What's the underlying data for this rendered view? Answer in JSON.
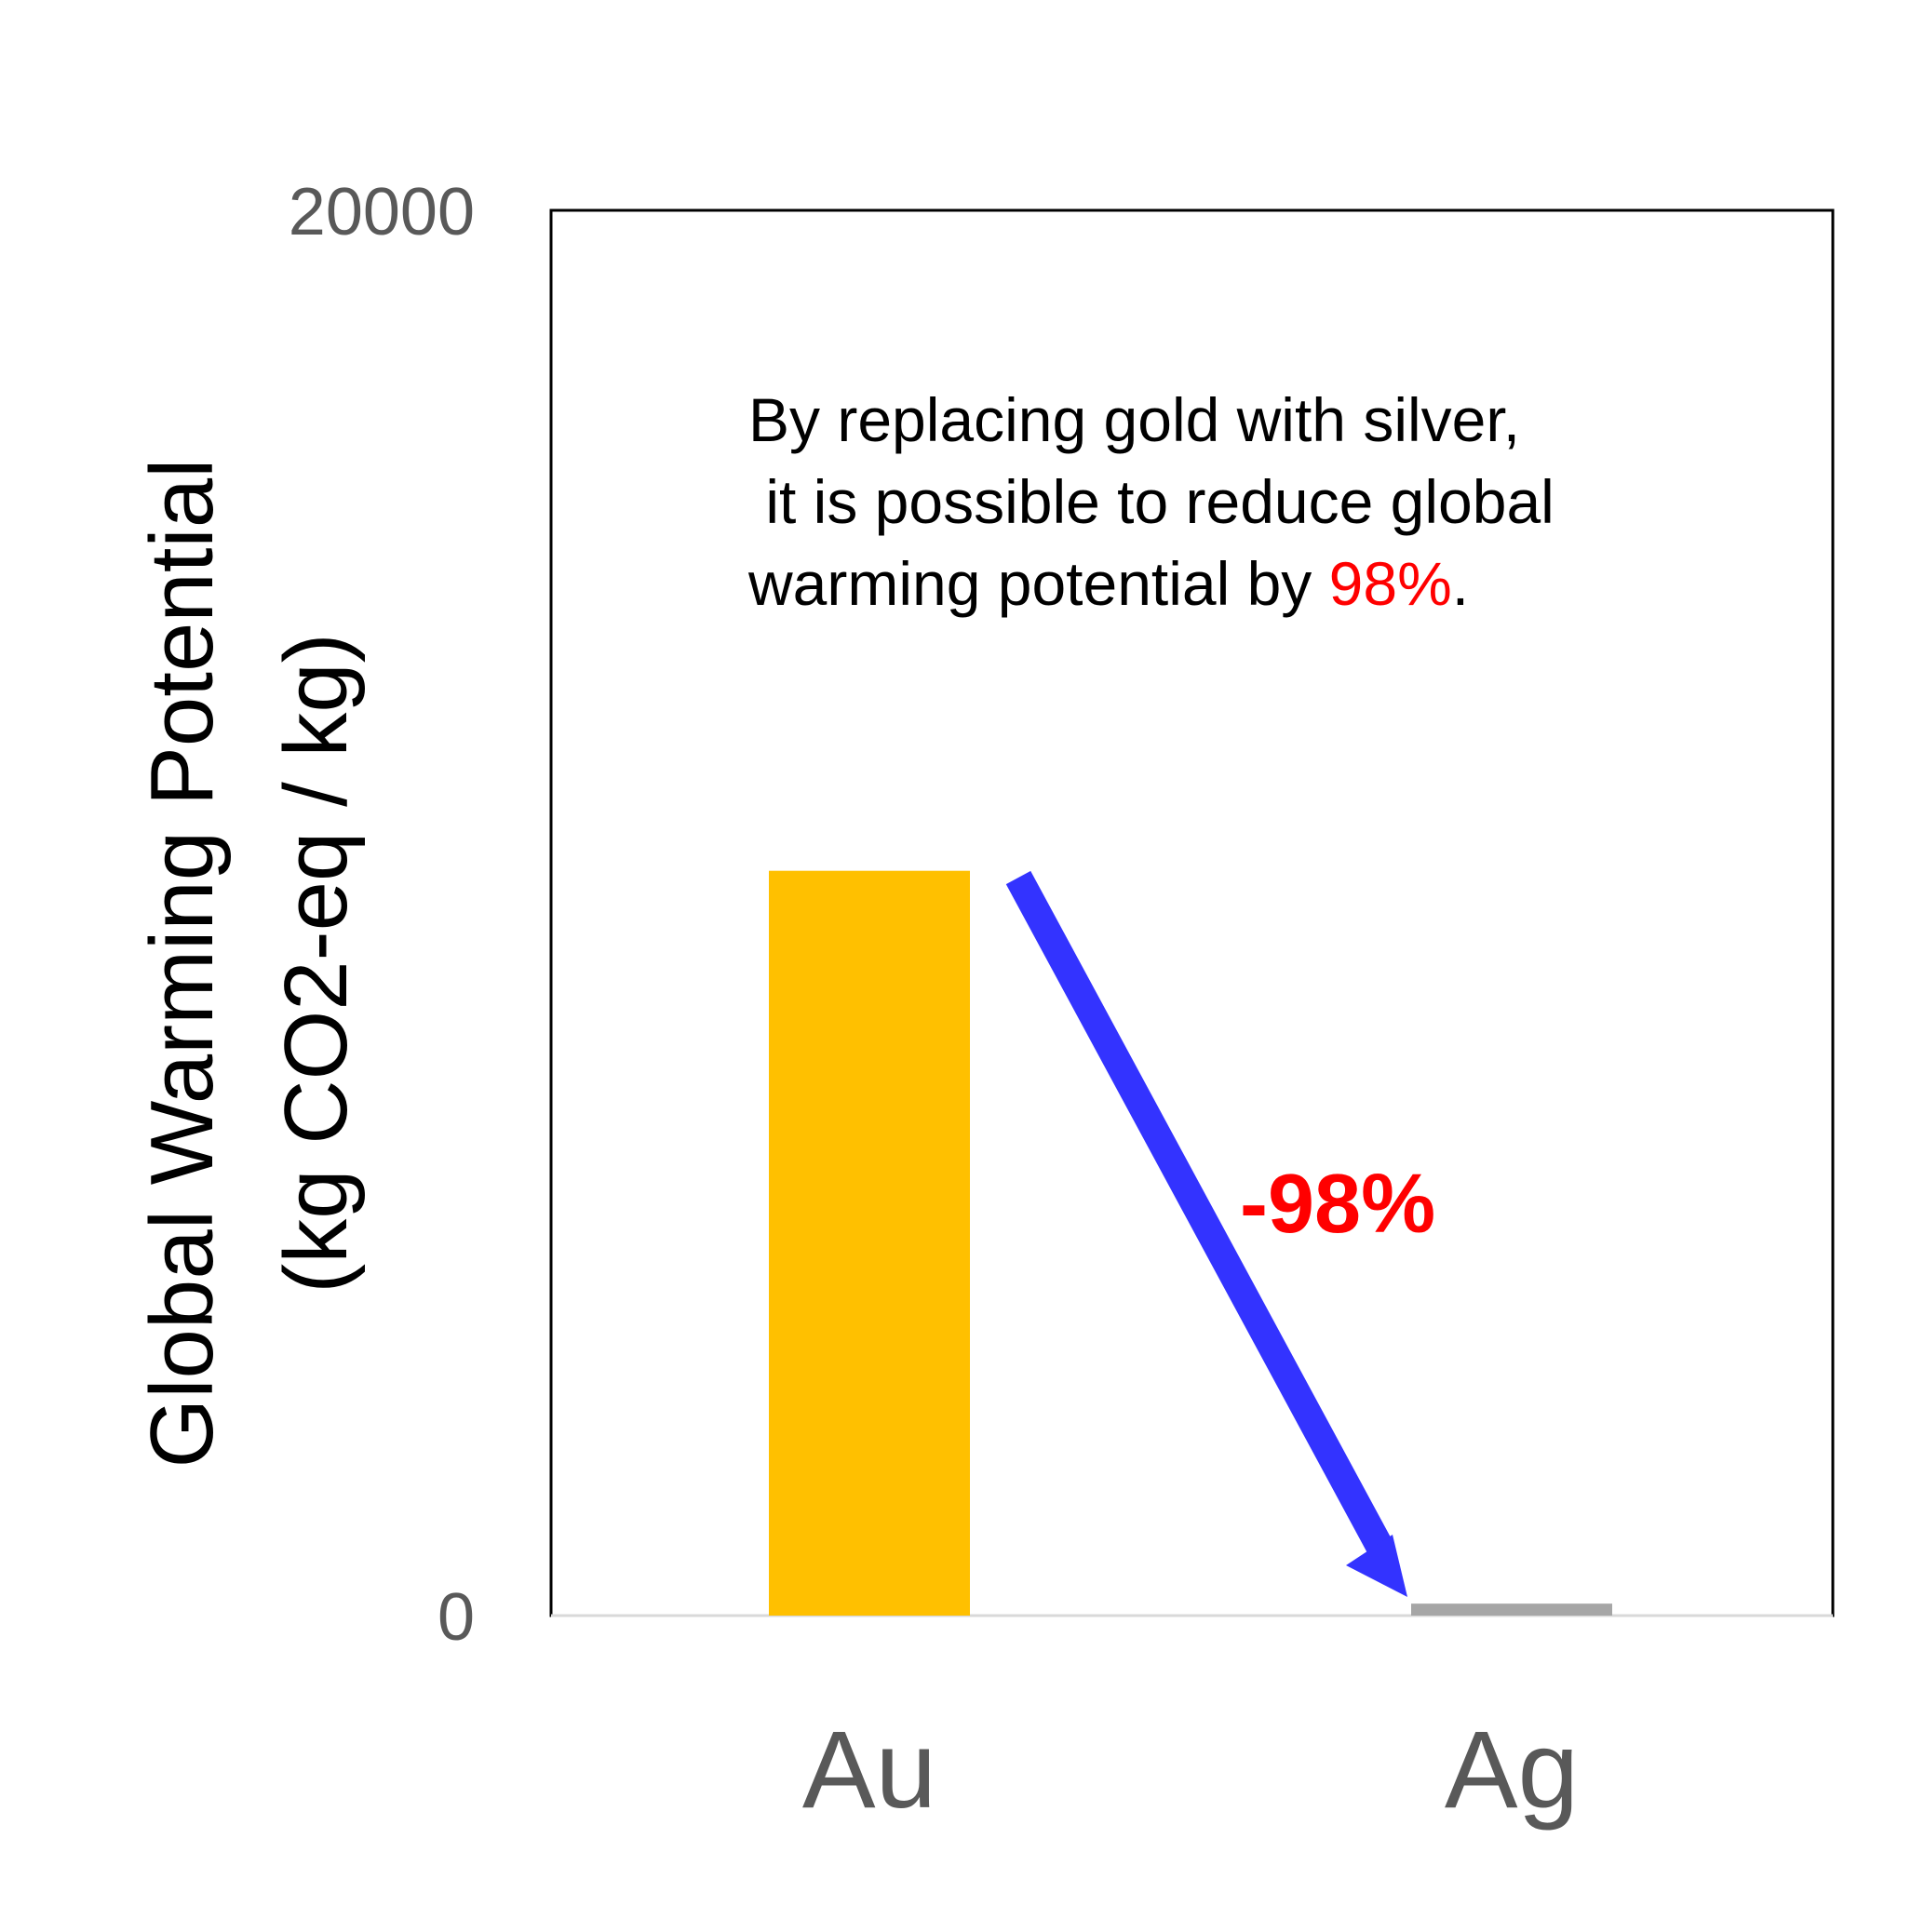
{
  "chart_data": {
    "type": "bar",
    "categories": [
      "Au",
      "Ag"
    ],
    "values": [
      10600,
      170
    ],
    "ylim": [
      0,
      20000
    ],
    "yticks": [
      "0",
      "20000"
    ],
    "ylabel": {
      "line1": "Global Warming Potential",
      "line2": "(kg CO2-eq / kg)"
    },
    "grid": false,
    "annotation": {
      "line1": "By replacing gold with silver,",
      "line2": " it is possible to reduce global",
      "line3_prefix": "warming potential by ",
      "line3_highlight": "98%",
      "line3_suffix": ".",
      "arrow_label": "-98%"
    },
    "colors": {
      "Au": "#FFC000",
      "Ag": "#A6A6A6",
      "arrow": "#3333FF",
      "highlight": "#FF0000"
    }
  }
}
